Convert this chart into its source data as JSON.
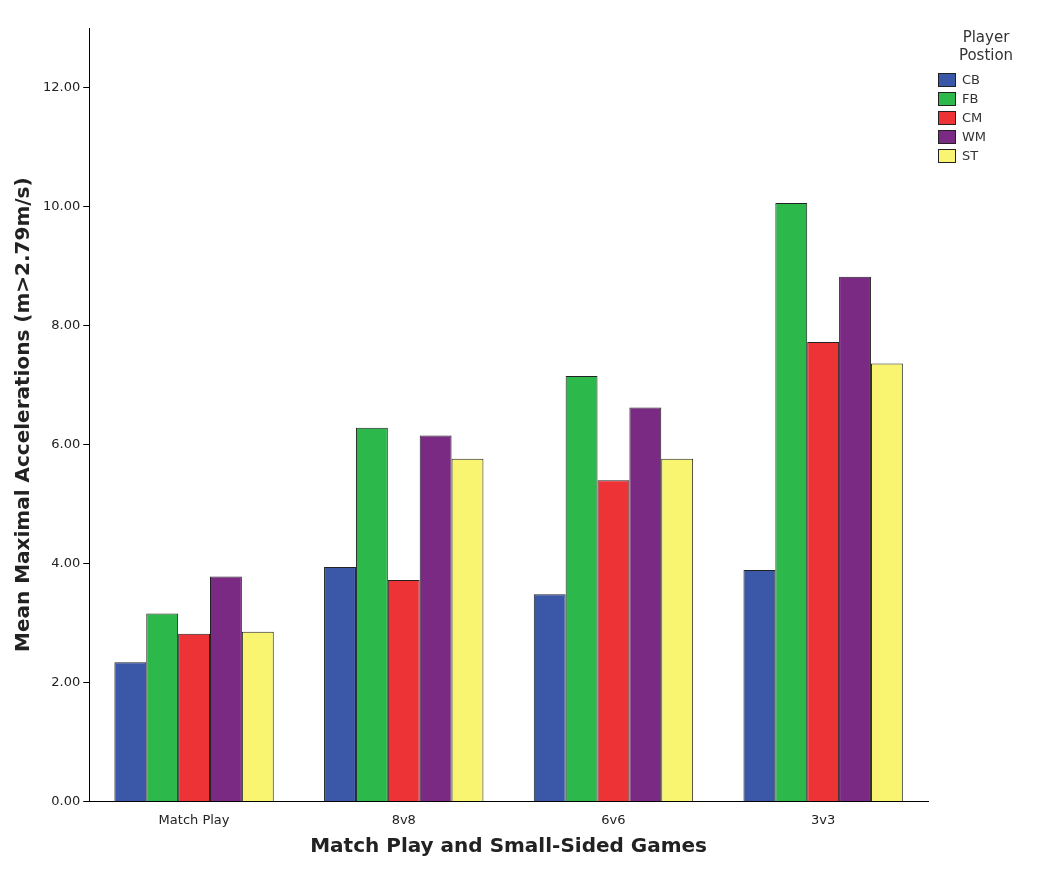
{
  "chart_data": {
    "type": "bar",
    "xlabel": "Match Play and Small-Sided Games",
    "ylabel": "Mean Maximal Accelerations (m>2.79m/s)",
    "legend_title": "Player Postion",
    "categories": [
      "Match Play",
      "8v8",
      "6v6",
      "3v3"
    ],
    "series": [
      {
        "name": "CB",
        "color": "#3b57a8",
        "values": [
          2.34,
          3.94,
          3.48,
          3.89
        ]
      },
      {
        "name": "FB",
        "color": "#2db84b",
        "values": [
          3.16,
          6.28,
          7.15,
          10.06
        ]
      },
      {
        "name": "CM",
        "color": "#ee3337",
        "values": [
          2.82,
          3.72,
          5.4,
          7.72
        ]
      },
      {
        "name": "WM",
        "color": "#7a2a82",
        "values": [
          3.78,
          6.15,
          6.62,
          8.82
        ]
      },
      {
        "name": "ST",
        "color": "#f9f571",
        "values": [
          2.85,
          5.76,
          5.76,
          7.36
        ]
      }
    ],
    "ylim": [
      0,
      13
    ],
    "yticks": [
      {
        "value": 0,
        "label": "0.00"
      },
      {
        "value": 2,
        "label": "2.00"
      },
      {
        "value": 4,
        "label": "4.00"
      },
      {
        "value": 6,
        "label": "6.00"
      },
      {
        "value": 8,
        "label": "8.00"
      },
      {
        "value": 10,
        "label": "10.00"
      },
      {
        "value": 12,
        "label": "12.00"
      }
    ],
    "grid": false,
    "legend": "top right"
  }
}
